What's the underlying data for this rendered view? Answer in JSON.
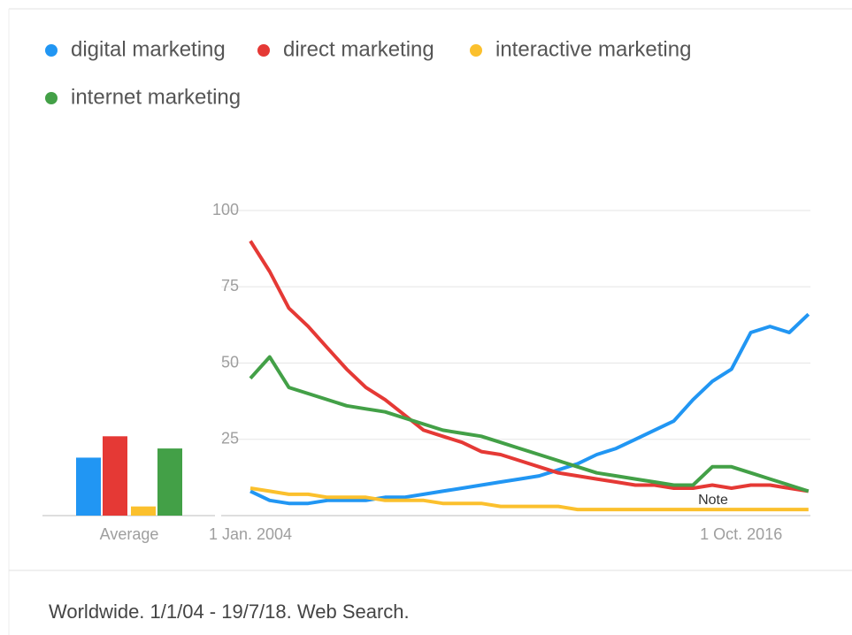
{
  "chart_data": {
    "type": "line",
    "x": [
      2004.0,
      2004.5,
      2005.0,
      2005.5,
      2006.0,
      2006.5,
      2007.0,
      2007.5,
      2008.0,
      2008.5,
      2009.0,
      2009.5,
      2010.0,
      2010.5,
      2011.0,
      2011.5,
      2012.0,
      2012.5,
      2013.0,
      2013.5,
      2014.0,
      2014.5,
      2015.0,
      2015.5,
      2016.0,
      2016.5,
      2017.0,
      2017.5,
      2018.0,
      2018.5
    ],
    "series": [
      {
        "name": "digital marketing",
        "color": "#2196f3",
        "average": 19,
        "values": [
          8,
          5,
          4,
          4,
          5,
          5,
          5,
          6,
          6,
          7,
          8,
          9,
          10,
          11,
          12,
          13,
          15,
          17,
          20,
          22,
          25,
          28,
          31,
          38,
          44,
          48,
          60,
          62,
          60,
          66
        ]
      },
      {
        "name": "direct marketing",
        "color": "#e53935",
        "average": 26,
        "values": [
          90,
          80,
          68,
          62,
          55,
          48,
          42,
          38,
          33,
          28,
          26,
          24,
          21,
          20,
          18,
          16,
          14,
          13,
          12,
          11,
          10,
          10,
          9,
          9,
          10,
          9,
          10,
          10,
          9,
          8
        ]
      },
      {
        "name": "interactive marketing",
        "color": "#fbc02d",
        "average": 3,
        "values": [
          9,
          8,
          7,
          7,
          6,
          6,
          6,
          5,
          5,
          5,
          4,
          4,
          4,
          3,
          3,
          3,
          3,
          2,
          2,
          2,
          2,
          2,
          2,
          2,
          2,
          2,
          2,
          2,
          2,
          2
        ]
      },
      {
        "name": "internet marketing",
        "color": "#43a047",
        "average": 22,
        "values": [
          45,
          52,
          42,
          40,
          38,
          36,
          35,
          34,
          32,
          30,
          28,
          27,
          26,
          24,
          22,
          20,
          18,
          16,
          14,
          13,
          12,
          11,
          10,
          10,
          16,
          16,
          14,
          12,
          10,
          8
        ]
      }
    ],
    "xlim": [
      2004.0,
      2018.55
    ],
    "xticks": [
      {
        "value": 2004.0,
        "label": "1 Jan. 2004"
      },
      {
        "value": 2016.75,
        "label": "1 Oct. 2016"
      }
    ],
    "ylim": [
      0,
      100
    ],
    "yticks": [
      25,
      50,
      75,
      100
    ],
    "grid": true,
    "average_label": "Average",
    "annotation": "Note"
  },
  "footer": "Worldwide. 1/1/04 - 19/7/18. Web Search."
}
